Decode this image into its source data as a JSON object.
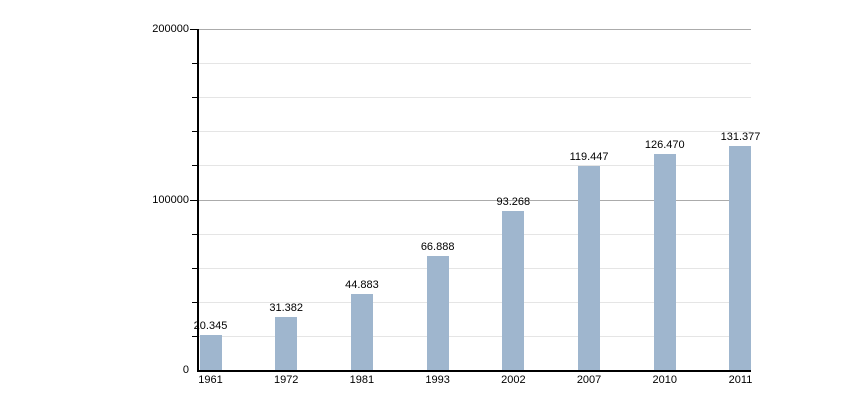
{
  "chart_data": {
    "type": "bar",
    "title": "",
    "xlabel": "",
    "ylabel": "",
    "categories": [
      "1961",
      "1972",
      "1981",
      "1993",
      "2002",
      "2007",
      "2010",
      "2011"
    ],
    "values": [
      20345,
      31382,
      44883,
      66888,
      93268,
      119447,
      126470,
      131377
    ],
    "bar_value_labels": [
      "20.345",
      "31.382",
      "44.883",
      "66.888",
      "93.268",
      "119.447",
      "126.470",
      "131.377"
    ],
    "ylim": [
      0,
      200000
    ],
    "y_major_ticks": [
      {
        "value": 0,
        "label": "0"
      },
      {
        "value": 100000,
        "label": "100000"
      },
      {
        "value": 200000,
        "label": "200000"
      }
    ],
    "y_minor_step": 20000,
    "grid": "horizontal",
    "legend": "none",
    "colors": {
      "bar": "#9FB6CE",
      "grid_minor": "#e5e5e5",
      "grid_major": "#ababab",
      "axis": "#000000",
      "text": "#000000",
      "background": "#ffffff"
    }
  }
}
